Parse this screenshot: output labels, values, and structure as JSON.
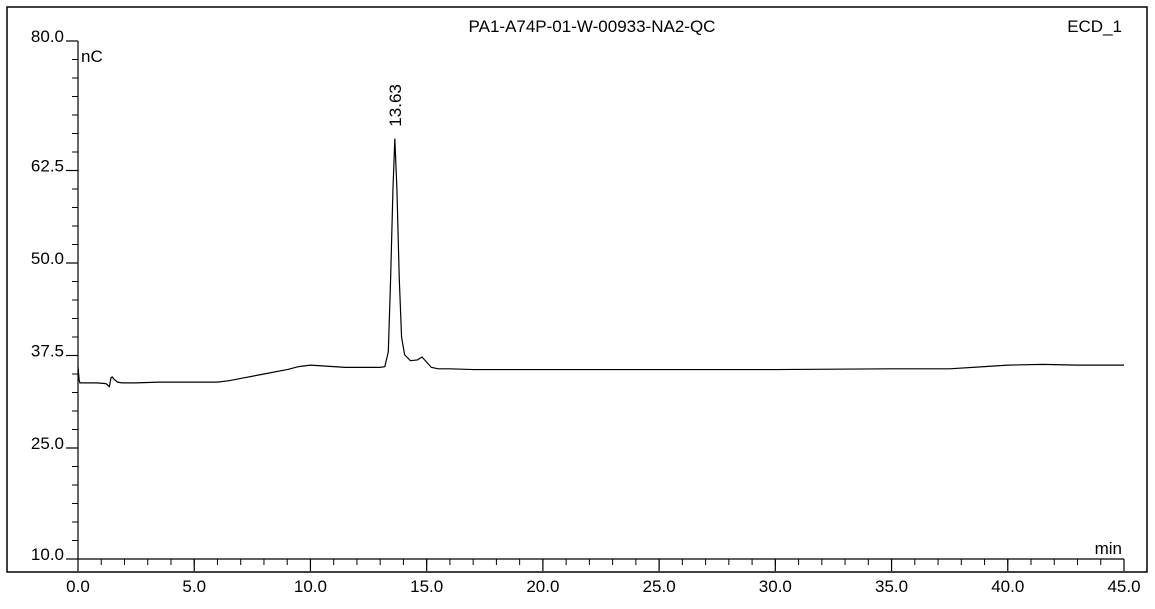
{
  "chart_data": {
    "type": "line",
    "title": "PA1-A74P-01-W-00933-NA2-QC",
    "channel": "ECD_1",
    "xlabel": "min",
    "ylabel": "nC",
    "xlim": [
      0.0,
      45.0
    ],
    "ylim": [
      10.0,
      80.0
    ],
    "x_ticks": [
      {
        "value": 0,
        "label": "0.0"
      },
      {
        "value": 5,
        "label": "5.0"
      },
      {
        "value": 10,
        "label": "10.0"
      },
      {
        "value": 15,
        "label": "15.0"
      },
      {
        "value": 20,
        "label": "20.0"
      },
      {
        "value": 25,
        "label": "25.0"
      },
      {
        "value": 30,
        "label": "30.0"
      },
      {
        "value": 35,
        "label": "35.0"
      },
      {
        "value": 40,
        "label": "40.0"
      },
      {
        "value": 45,
        "label": "45.0"
      }
    ],
    "y_ticks": [
      {
        "value": 10,
        "label": "10.0"
      },
      {
        "value": 25,
        "label": "25.0"
      },
      {
        "value": 37.5,
        "label": "37.5"
      },
      {
        "value": 50,
        "label": "50.0"
      },
      {
        "value": 62.5,
        "label": "62.5"
      },
      {
        "value": 80,
        "label": "80.0"
      }
    ],
    "peaks": [
      {
        "x": 13.63,
        "y": 66.8,
        "label": "13.63"
      }
    ],
    "series": [
      {
        "color": "#000000",
        "x": [
          0.0,
          0.05,
          0.08,
          0.3,
          0.8,
          1.2,
          1.35,
          1.42,
          1.47,
          1.55,
          1.7,
          1.9,
          2.5,
          3.5,
          5.0,
          6.0,
          6.5,
          7.0,
          8.0,
          9.0,
          9.5,
          10.0,
          10.5,
          11.0,
          11.5,
          12.0,
          12.5,
          13.0,
          13.2,
          13.35,
          13.45,
          13.55,
          13.63,
          13.72,
          13.82,
          13.92,
          14.05,
          14.3,
          14.6,
          14.8,
          15.0,
          15.2,
          15.5,
          16.0,
          17.0,
          20.0,
          25.0,
          30.0,
          35.0,
          37.5,
          39.0,
          40.0,
          41.5,
          43.0,
          45.0
        ],
        "y": [
          36.0,
          34.2,
          33.8,
          33.8,
          33.8,
          33.7,
          33.3,
          34.5,
          34.6,
          34.3,
          33.9,
          33.8,
          33.8,
          33.9,
          33.9,
          33.9,
          34.1,
          34.4,
          35.0,
          35.6,
          36.0,
          36.2,
          36.1,
          36.0,
          35.9,
          35.9,
          35.9,
          35.9,
          36.0,
          38.0,
          48.0,
          60.0,
          66.8,
          60.0,
          48.0,
          40.0,
          37.6,
          36.8,
          36.9,
          37.3,
          36.6,
          35.9,
          35.7,
          35.7,
          35.6,
          35.6,
          35.6,
          35.6,
          35.7,
          35.7,
          36.0,
          36.2,
          36.3,
          36.2,
          36.2
        ]
      }
    ]
  }
}
